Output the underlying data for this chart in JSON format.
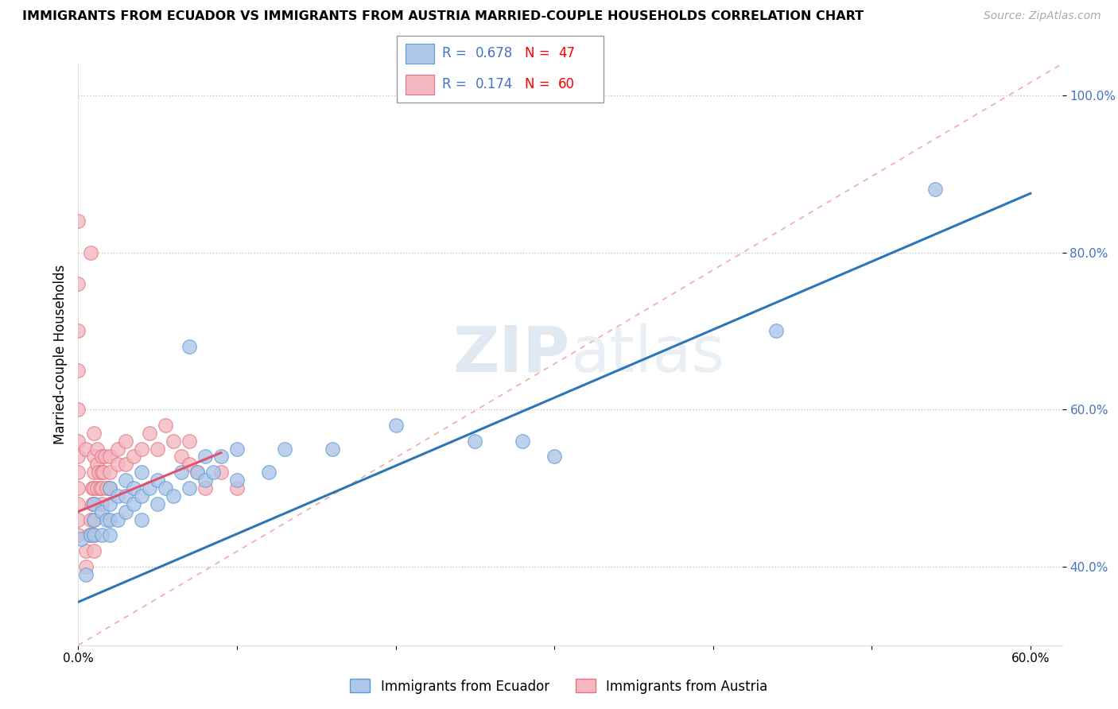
{
  "title": "IMMIGRANTS FROM ECUADOR VS IMMIGRANTS FROM AUSTRIA MARRIED-COUPLE HOUSEHOLDS CORRELATION CHART",
  "source": "Source: ZipAtlas.com",
  "ylabel": "Married-couple Households",
  "xlim": [
    0.0,
    0.62
  ],
  "ylim": [
    0.3,
    1.04
  ],
  "xticks": [
    0.0,
    0.1,
    0.2,
    0.3,
    0.4,
    0.5,
    0.6
  ],
  "xticklabels": [
    "0.0%",
    "",
    "",
    "",
    "",
    "",
    "60.0%"
  ],
  "yticks": [
    0.4,
    0.6,
    0.8,
    1.0
  ],
  "yticklabels": [
    "40.0%",
    "60.0%",
    "80.0%",
    "100.0%"
  ],
  "ecuador_color": "#aec6e8",
  "ecuador_edge": "#5b9bd5",
  "austria_color": "#f4b8c1",
  "austria_edge": "#e87080",
  "ecuador_R": 0.678,
  "ecuador_N": 47,
  "austria_R": 0.174,
  "austria_N": 60,
  "blue_text_color": "#4472c4",
  "red_text_color": "#ff0000",
  "blue_line_color": "#2e75b6",
  "pink_line_color": "#e05070",
  "diag_color": "#f4aaaa",
  "background_color": "#ffffff",
  "grid_color": "#c0c0c0",
  "ecuador_x": [
    0.002,
    0.005,
    0.008,
    0.01,
    0.01,
    0.01,
    0.015,
    0.015,
    0.018,
    0.02,
    0.02,
    0.02,
    0.02,
    0.025,
    0.025,
    0.03,
    0.03,
    0.03,
    0.035,
    0.035,
    0.04,
    0.04,
    0.04,
    0.045,
    0.05,
    0.05,
    0.055,
    0.06,
    0.065,
    0.07,
    0.07,
    0.075,
    0.08,
    0.08,
    0.085,
    0.09,
    0.1,
    0.1,
    0.12,
    0.13,
    0.16,
    0.2,
    0.25,
    0.28,
    0.3,
    0.44,
    0.54
  ],
  "ecuador_y": [
    0.435,
    0.39,
    0.44,
    0.44,
    0.46,
    0.48,
    0.44,
    0.47,
    0.46,
    0.44,
    0.46,
    0.48,
    0.5,
    0.46,
    0.49,
    0.47,
    0.49,
    0.51,
    0.48,
    0.5,
    0.46,
    0.49,
    0.52,
    0.5,
    0.48,
    0.51,
    0.5,
    0.49,
    0.52,
    0.5,
    0.68,
    0.52,
    0.51,
    0.54,
    0.52,
    0.54,
    0.51,
    0.55,
    0.52,
    0.55,
    0.55,
    0.58,
    0.56,
    0.56,
    0.54,
    0.7,
    0.88
  ],
  "austria_x": [
    0.0,
    0.0,
    0.0,
    0.0,
    0.0,
    0.0,
    0.0,
    0.0,
    0.0,
    0.0,
    0.0,
    0.0,
    0.005,
    0.005,
    0.005,
    0.007,
    0.008,
    0.008,
    0.009,
    0.009,
    0.01,
    0.01,
    0.01,
    0.01,
    0.01,
    0.01,
    0.01,
    0.01,
    0.012,
    0.012,
    0.012,
    0.013,
    0.014,
    0.015,
    0.015,
    0.015,
    0.015,
    0.016,
    0.017,
    0.018,
    0.02,
    0.02,
    0.02,
    0.025,
    0.025,
    0.03,
    0.03,
    0.035,
    0.04,
    0.045,
    0.05,
    0.055,
    0.06,
    0.065,
    0.07,
    0.07,
    0.075,
    0.08,
    0.09,
    0.1
  ],
  "austria_y": [
    0.44,
    0.46,
    0.48,
    0.5,
    0.52,
    0.54,
    0.56,
    0.6,
    0.65,
    0.7,
    0.76,
    0.84,
    0.4,
    0.42,
    0.55,
    0.44,
    0.46,
    0.8,
    0.48,
    0.5,
    0.42,
    0.44,
    0.46,
    0.48,
    0.5,
    0.52,
    0.54,
    0.57,
    0.5,
    0.53,
    0.55,
    0.52,
    0.5,
    0.48,
    0.5,
    0.52,
    0.54,
    0.52,
    0.54,
    0.5,
    0.5,
    0.52,
    0.54,
    0.53,
    0.55,
    0.53,
    0.56,
    0.54,
    0.55,
    0.57,
    0.55,
    0.58,
    0.56,
    0.54,
    0.53,
    0.56,
    0.52,
    0.5,
    0.52,
    0.5
  ],
  "blue_line_x0": 0.0,
  "blue_line_y0": 0.355,
  "blue_line_x1": 0.6,
  "blue_line_y1": 0.875,
  "pink_line_x0": 0.0,
  "pink_line_x1": 0.09,
  "pink_line_y0": 0.47,
  "pink_line_y1": 0.545
}
